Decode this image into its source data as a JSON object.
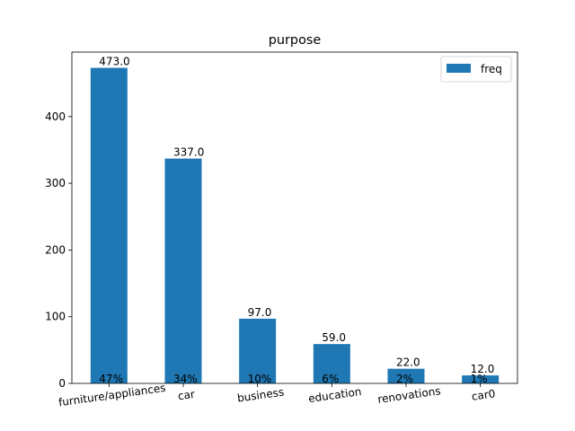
{
  "chart_data": {
    "type": "bar",
    "title": "purpose",
    "xlabel": "",
    "ylabel": "",
    "categories": [
      "furniture/appliances",
      "car",
      "business",
      "education",
      "renovations",
      "car0"
    ],
    "series": [
      {
        "name": "freq",
        "values": [
          473.0,
          337.0,
          97.0,
          59.0,
          22.0,
          12.0
        ],
        "value_labels": [
          "473.0",
          "337.0",
          "97.0",
          "59.0",
          "22.0",
          "12.0"
        ],
        "percent_labels": [
          "47%",
          "34%",
          "10%",
          "6%",
          "2%",
          "1%"
        ]
      }
    ],
    "yticks": [
      0,
      100,
      200,
      300,
      400
    ],
    "ylim": [
      0,
      496.65
    ],
    "grid": false,
    "legend": "top-right",
    "bar_color": "#1f77b4",
    "tick_label_rotation_deg": -8
  }
}
